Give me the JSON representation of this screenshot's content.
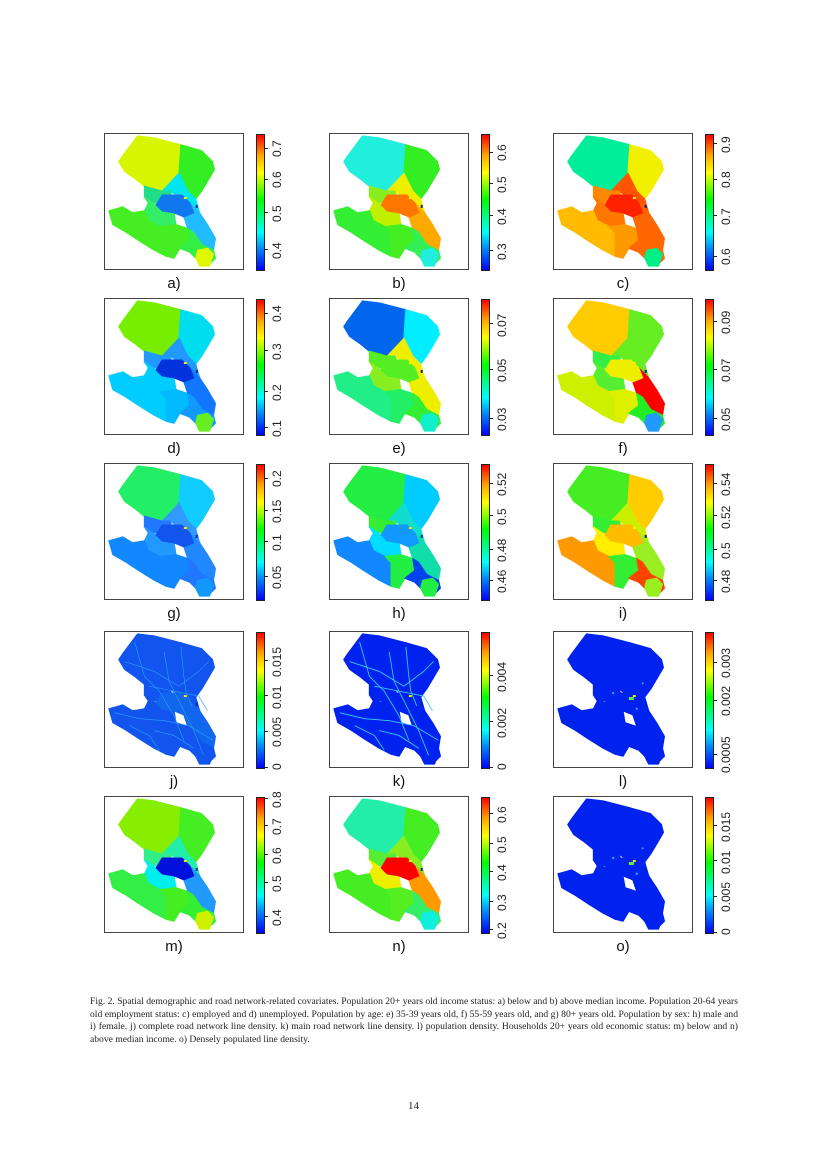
{
  "figure": {
    "panels": [
      {
        "id": "a",
        "label": "a)",
        "ticks": [
          "0.4",
          "0.5",
          "0.6",
          "0.7"
        ],
        "tickpos": [
          0.15,
          0.42,
          0.67,
          0.9
        ],
        "colors": {
          "nw": "#d8f500",
          "ne": "#33ee22",
          "c1": "#00e6ee",
          "c2": "#22dd88",
          "core": "#1177ee",
          "w": "#33ee66",
          "sw": "#44ee22",
          "s": "#44ee22",
          "se": "#33ee44",
          "e": "#22bbff",
          "tip": "#dff700"
        }
      },
      {
        "id": "b",
        "label": "b)",
        "ticks": [
          "0.3",
          "0.4",
          "0.5",
          "0.6"
        ],
        "tickpos": [
          0.14,
          0.4,
          0.64,
          0.87
        ],
        "colors": {
          "nw": "#22eedd",
          "ne": "#33ee22",
          "c1": "#f0ee00",
          "c2": "#88ee22",
          "core": "#ff7700",
          "w": "#c0f000",
          "sw": "#33ee33",
          "s": "#44ee22",
          "se": "#33ee55",
          "e": "#ffaa00",
          "tip": "#22eedd"
        }
      },
      {
        "id": "c",
        "label": "c)",
        "ticks": [
          "0.6",
          "0.7",
          "0.8",
          "0.9"
        ],
        "tickpos": [
          0.1,
          0.4,
          0.67,
          0.93
        ],
        "colors": {
          "nw": "#00ee99",
          "ne": "#f0f000",
          "c1": "#ff5500",
          "c2": "#ff8800",
          "core": "#ff2200",
          "w": "#ff7700",
          "sw": "#ffbb00",
          "s": "#ff9900",
          "se": "#ff6600",
          "e": "#ff6600",
          "tip": "#00ee88"
        }
      },
      {
        "id": "d",
        "label": "d)",
        "ticks": [
          "0.1",
          "0.2",
          "0.3",
          "0.4"
        ],
        "tickpos": [
          0.05,
          0.32,
          0.62,
          0.9
        ],
        "colors": {
          "nw": "#77ee00",
          "ne": "#00ddee",
          "c1": "#2299ff",
          "c2": "#2299ff",
          "core": "#0033dd",
          "w": "#00ccff",
          "sw": "#00ccff",
          "s": "#00bbff",
          "se": "#1199ff",
          "e": "#1177ff",
          "tip": "#66ee22"
        }
      },
      {
        "id": "e",
        "label": "e)",
        "ticks": [
          "0.03",
          "0.05",
          "0.07"
        ],
        "tickpos": [
          0.12,
          0.48,
          0.82
        ],
        "colors": {
          "nw": "#0066ee",
          "ne": "#00eeff",
          "c1": "#eeee00",
          "c2": "#55ee22",
          "core": "#55ee22",
          "w": "#88ee22",
          "sw": "#22ee88",
          "s": "#22ee66",
          "se": "#33ee33",
          "e": "#eeee00",
          "tip": "#11eecc"
        }
      },
      {
        "id": "f",
        "label": "f)",
        "ticks": [
          "0.05",
          "0.07",
          "0.09"
        ],
        "tickpos": [
          0.12,
          0.48,
          0.84
        ],
        "colors": {
          "nw": "#ffcc00",
          "ne": "#66ee22",
          "c1": "#66ee22",
          "c2": "#33ee44",
          "core": "#eeee00",
          "w": "#55ee33",
          "sw": "#ccf000",
          "s": "#ddf000",
          "se": "#22ee22",
          "e": "#ff0000",
          "tip": "#2299ff"
        }
      },
      {
        "id": "g",
        "label": "g)",
        "ticks": [
          "0.05",
          "0.1",
          "0.15",
          "0.2"
        ],
        "tickpos": [
          0.17,
          0.43,
          0.66,
          0.9
        ],
        "colors": {
          "nw": "#22ee66",
          "ne": "#11ccff",
          "c1": "#3399ff",
          "c2": "#2277ff",
          "core": "#1155ee",
          "w": "#2299ff",
          "sw": "#1188ff",
          "s": "#1188ff",
          "se": "#2277ff",
          "e": "#2288ff",
          "tip": "#1199ff"
        }
      },
      {
        "id": "h",
        "label": "h)",
        "ticks": [
          "0.46",
          "0.48",
          "0.5",
          "0.52"
        ],
        "tickpos": [
          0.14,
          0.37,
          0.62,
          0.86
        ],
        "colors": {
          "nw": "#22ee44",
          "ne": "#00ccff",
          "c1": "#11ddcc",
          "c2": "#33ee33",
          "core": "#1199ff",
          "w": "#00ddff",
          "sw": "#1188ff",
          "s": "#22ee44",
          "se": "#0044ee",
          "e": "#11ddaa",
          "tip": "#22ee44"
        }
      },
      {
        "id": "i",
        "label": "i)",
        "ticks": [
          "0.48",
          "0.5",
          "0.52",
          "0.54"
        ],
        "tickpos": [
          0.14,
          0.37,
          0.62,
          0.86
        ],
        "colors": {
          "nw": "#44ee22",
          "ne": "#ffcc00",
          "c1": "#ccee00",
          "c2": "#33ee33",
          "core": "#ffbb00",
          "w": "#ffee00",
          "sw": "#ff9900",
          "s": "#33ee33",
          "se": "#ff4400",
          "e": "#99ee22",
          "tip": "#99ee22"
        }
      },
      {
        "id": "j",
        "label": "j)",
        "ticks": [
          "0",
          "0.005",
          "0.01",
          "0.015"
        ],
        "tickpos": [
          0.0,
          0.27,
          0.53,
          0.79
        ],
        "colors": {
          "nw": "#1155ee",
          "ne": "#1155ee",
          "c1": "#1155ee",
          "c2": "#1155ee",
          "core": "#1166ee",
          "w": "#1155ee",
          "sw": "#1155ee",
          "s": "#1155ee",
          "se": "#1155ee",
          "e": "#1166ee",
          "tip": "#1155ee"
        }
      },
      {
        "id": "k",
        "label": "k)",
        "ticks": [
          "0",
          "0.002",
          "0.004"
        ],
        "tickpos": [
          0.0,
          0.34,
          0.68
        ],
        "colors": {
          "nw": "#0022ee",
          "ne": "#0022ee",
          "c1": "#0022ee",
          "c2": "#0022ee",
          "core": "#0022ee",
          "w": "#0022ee",
          "sw": "#0022ee",
          "s": "#0022ee",
          "se": "#0022ee",
          "e": "#0022ee",
          "tip": "#0022ee"
        }
      },
      {
        "id": "l",
        "label": "l)",
        "ticks": [
          "0.0005",
          "0.002",
          "0.003"
        ],
        "tickpos": [
          0.1,
          0.5,
          0.78
        ],
        "colors": {
          "nw": "#0022ee",
          "ne": "#0022ee",
          "c1": "#0022ee",
          "c2": "#0022ee",
          "core": "#0022ee",
          "w": "#0022ee",
          "sw": "#0022ee",
          "s": "#0022ee",
          "se": "#0022ee",
          "e": "#0022ee",
          "tip": "#0022ee"
        }
      },
      {
        "id": "m",
        "label": "m)",
        "ticks": [
          "0.4",
          "0.5",
          "0.6",
          "0.7",
          "0.8"
        ],
        "tickpos": [
          0.12,
          0.37,
          0.58,
          0.79,
          0.99
        ],
        "colors": {
          "nw": "#88ee00",
          "ne": "#44ee22",
          "c1": "#22eeaa",
          "c2": "#33ee88",
          "core": "#0011dd",
          "w": "#00eeee",
          "sw": "#33ee44",
          "s": "#44ee22",
          "se": "#33ee33",
          "e": "#2299ff",
          "tip": "#ccf000"
        }
      },
      {
        "id": "n",
        "label": "n)",
        "ticks": [
          "0.2",
          "0.3",
          "0.4",
          "0.5",
          "0.6"
        ],
        "tickpos": [
          0.02,
          0.23,
          0.45,
          0.66,
          0.88
        ],
        "colors": {
          "nw": "#22eeaa",
          "ne": "#44ee22",
          "c1": "#88ee22",
          "c2": "#55ee33",
          "core": "#ff0000",
          "w": "#eeee00",
          "sw": "#44ee22",
          "s": "#55ee22",
          "se": "#33ee66",
          "e": "#ff9900",
          "tip": "#11eedd"
        }
      },
      {
        "id": "o",
        "label": "o)",
        "ticks": [
          "0",
          "0.005",
          "0.01",
          "0.015"
        ],
        "tickpos": [
          0.0,
          0.27,
          0.53,
          0.79
        ],
        "colors": {
          "nw": "#0022ee",
          "ne": "#0022ee",
          "c1": "#0022ee",
          "c2": "#0022ee",
          "core": "#0022ee",
          "w": "#0022ee",
          "sw": "#0022ee",
          "s": "#0022ee",
          "se": "#0022ee",
          "e": "#0022ee",
          "tip": "#0022ee"
        }
      }
    ]
  },
  "caption": "Fig. 2.  Spatial demographic and road network-related covariates.  Population 20+ years old income status: a) below and b) above median income. Population 20-64 years old employment status: c) employed and d) unemployed. Population by age: e) 35-39 years old, f) 55-59 years old, and g) 80+ years old.  Population by sex: h) male and i) female.  j) complete road network line density.  k) main road network line density.  l) population density. Households 20+ years old economic status: m) below and n) above median income. o) Densely populated line density.",
  "page_number": "14"
}
